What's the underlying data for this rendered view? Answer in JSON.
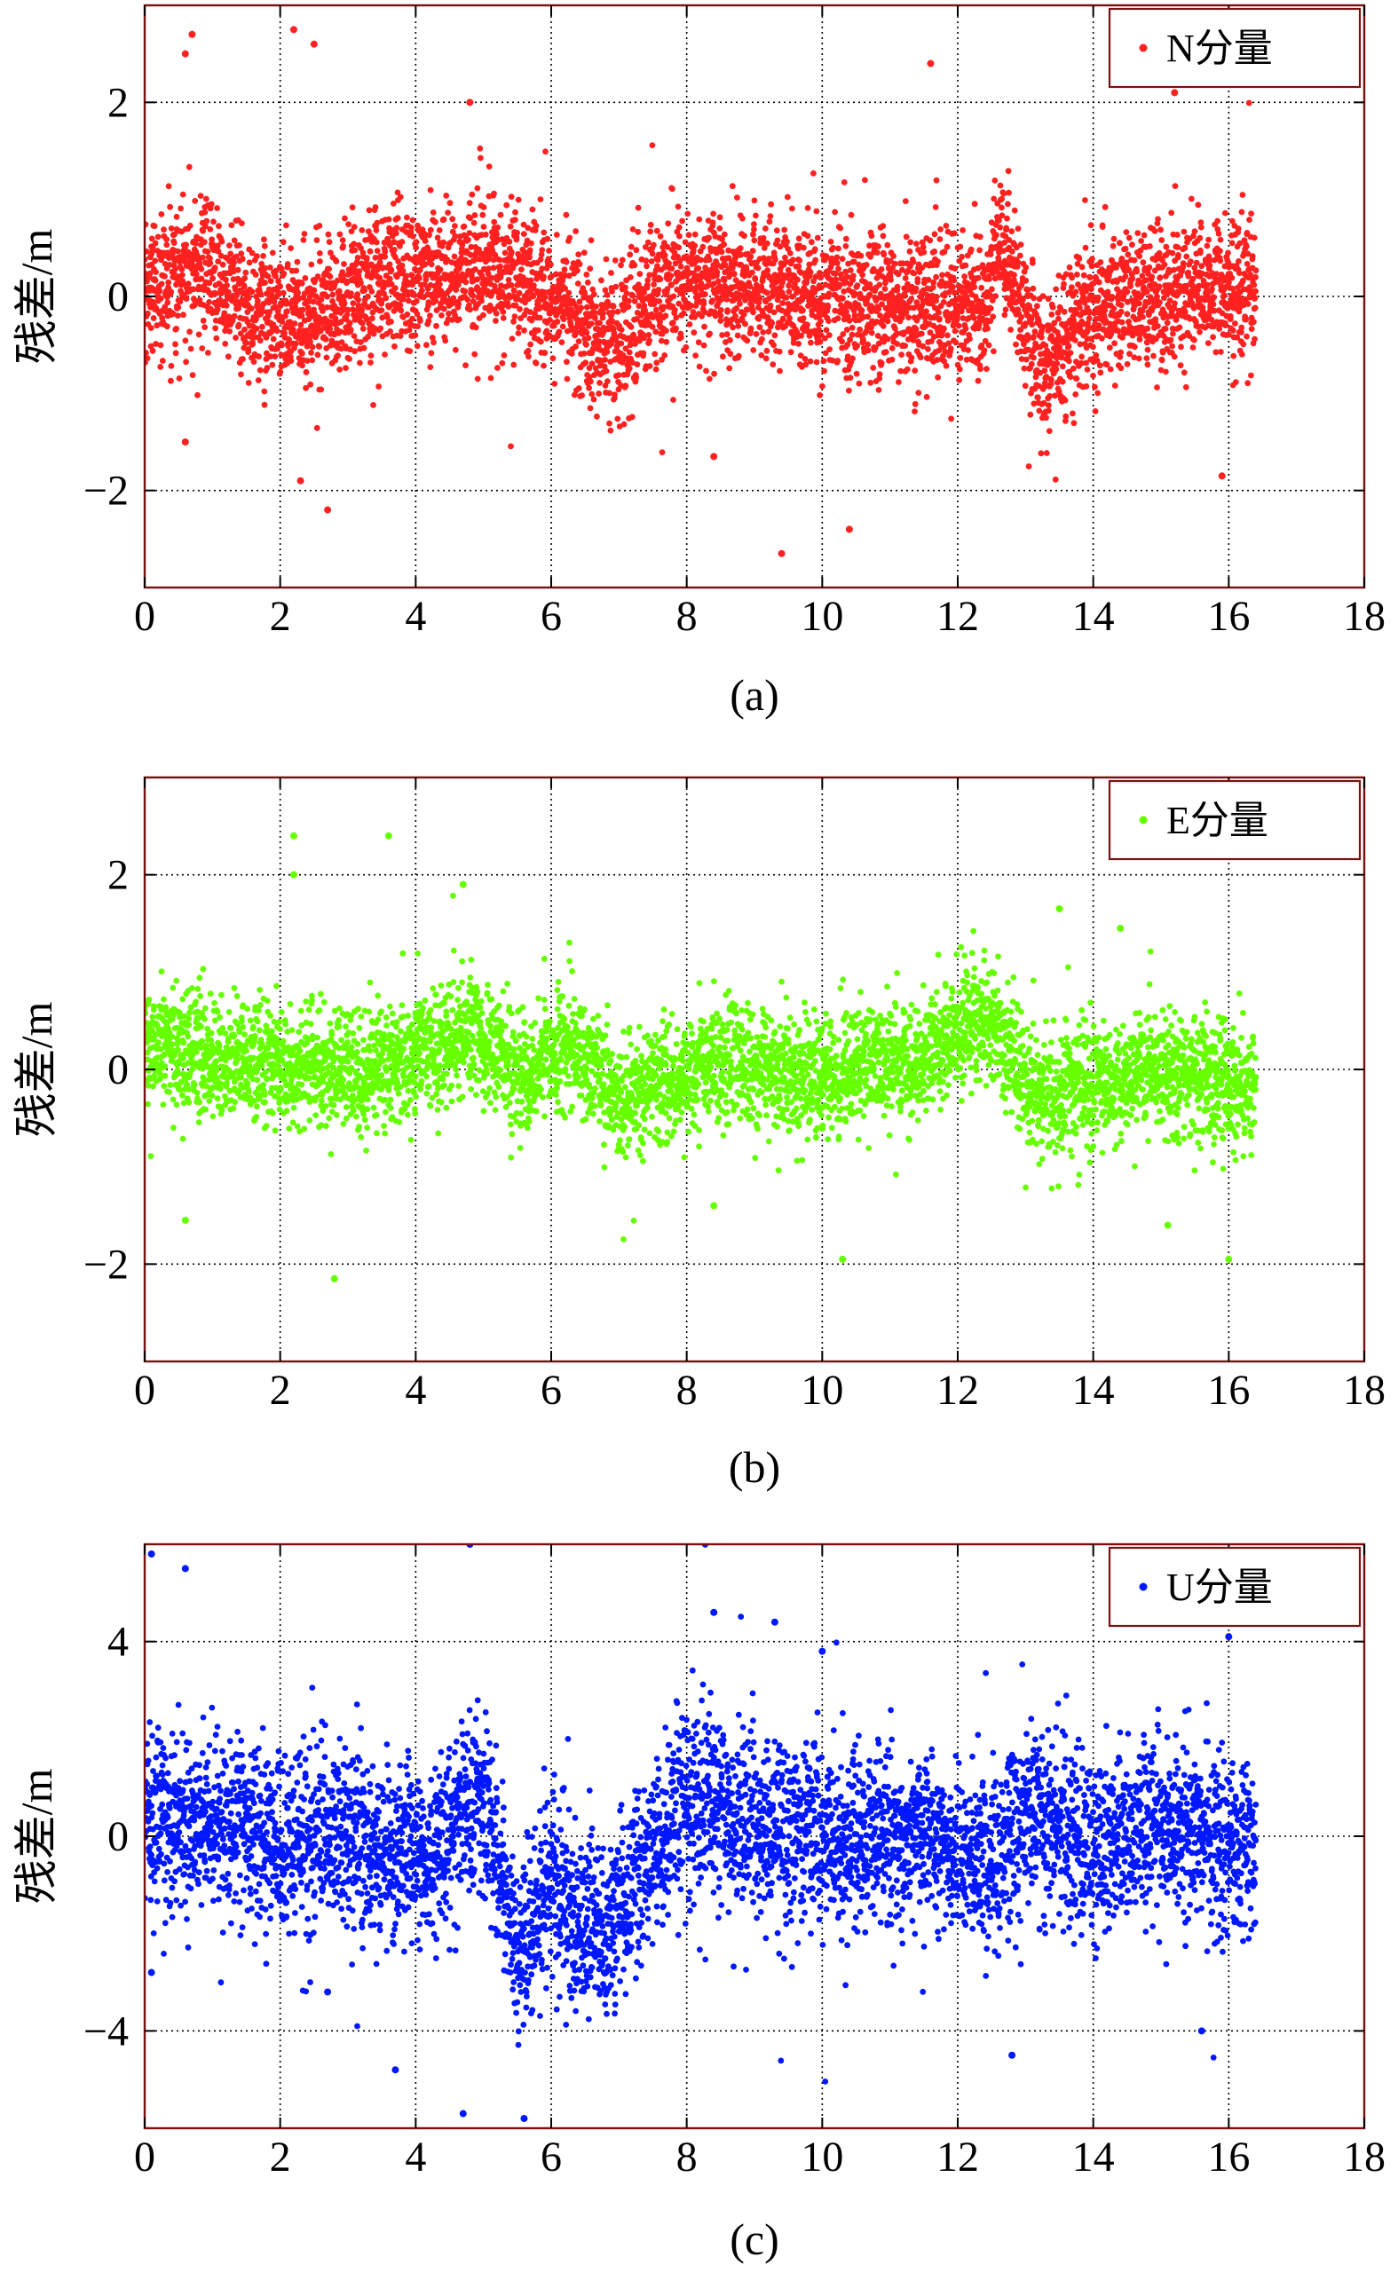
{
  "chart_data": [
    {
      "type": "scatter",
      "panel": "a",
      "caption": "(a)",
      "ylabel": "残差/m",
      "xlabel": "",
      "xlim": [
        0,
        18
      ],
      "ylim": [
        -3,
        3
      ],
      "xticks": [
        0,
        2,
        4,
        6,
        8,
        10,
        12,
        14,
        16,
        18
      ],
      "yticks": [
        -2,
        0,
        2
      ],
      "ytick_labels": [
        "−2",
        "0",
        "2"
      ],
      "grid": true,
      "legend_position": "top-right",
      "series": [
        {
          "name": "N分量",
          "color": "#ff2020",
          "x_range": [
            0,
            16.4
          ],
          "trend_segments": [
            [
              0,
              0.0
            ],
            [
              0.8,
              0.3
            ],
            [
              1.5,
              -0.1
            ],
            [
              2.5,
              -0.2
            ],
            [
              3.5,
              0.1
            ],
            [
              4.0,
              0.2
            ],
            [
              5.0,
              0.3
            ],
            [
              5.8,
              0.1
            ],
            [
              6.3,
              -0.2
            ],
            [
              7.0,
              -0.5
            ],
            [
              7.4,
              -0.1
            ],
            [
              8.0,
              0.2
            ],
            [
              9.5,
              0.0
            ],
            [
              11.0,
              -0.1
            ],
            [
              12.4,
              -0.1
            ],
            [
              12.6,
              0.6
            ],
            [
              13.3,
              -0.8
            ],
            [
              13.8,
              -0.2
            ],
            [
              15.0,
              0.0
            ],
            [
              16.4,
              0.1
            ]
          ],
          "spread": 0.35,
          "outliers": [
            [
              0.6,
              2.5
            ],
            [
              0.7,
              2.7
            ],
            [
              2.2,
              2.75
            ],
            [
              2.5,
              2.6
            ],
            [
              4.8,
              2.0
            ],
            [
              11.6,
              2.4
            ],
            [
              15.2,
              2.1
            ],
            [
              9.4,
              -2.65
            ],
            [
              10.4,
              -2.4
            ],
            [
              2.7,
              -2.2
            ],
            [
              8.4,
              -1.65
            ],
            [
              2.3,
              -1.9
            ],
            [
              15.9,
              -1.85
            ],
            [
              0.6,
              -1.5
            ]
          ]
        }
      ]
    },
    {
      "type": "scatter",
      "panel": "b",
      "caption": "(b)",
      "ylabel": "残差/m",
      "xlabel": "",
      "xlim": [
        0,
        18
      ],
      "ylim": [
        -3,
        3
      ],
      "xticks": [
        0,
        2,
        4,
        6,
        8,
        10,
        12,
        14,
        16,
        18
      ],
      "yticks": [
        -2,
        0,
        2
      ],
      "ytick_labels": [
        "−2",
        "0",
        "2"
      ],
      "grid": true,
      "legend_position": "top-right",
      "series": [
        {
          "name": "E分量",
          "color": "#66ff00",
          "x_range": [
            0,
            16.4
          ],
          "trend_segments": [
            [
              0,
              0.3
            ],
            [
              1.0,
              0.1
            ],
            [
              2.0,
              0.0
            ],
            [
              3.0,
              0.0
            ],
            [
              4.0,
              0.1
            ],
            [
              4.8,
              0.4
            ],
            [
              5.6,
              -0.1
            ],
            [
              6.2,
              0.3
            ],
            [
              7.0,
              -0.3
            ],
            [
              7.5,
              -0.2
            ],
            [
              8.5,
              0.1
            ],
            [
              10.0,
              -0.1
            ],
            [
              11.5,
              0.1
            ],
            [
              12.5,
              0.5
            ],
            [
              13.2,
              -0.3
            ],
            [
              14.0,
              -0.1
            ],
            [
              15.0,
              0.0
            ],
            [
              16.4,
              -0.2
            ]
          ],
          "spread": 0.3,
          "outliers": [
            [
              2.2,
              2.4
            ],
            [
              3.6,
              2.4
            ],
            [
              2.2,
              2.0
            ],
            [
              4.7,
              1.9
            ],
            [
              13.5,
              1.65
            ],
            [
              14.4,
              1.45
            ],
            [
              2.8,
              -2.15
            ],
            [
              10.3,
              -1.95
            ],
            [
              15.1,
              -1.6
            ],
            [
              0.6,
              -1.55
            ],
            [
              8.4,
              -1.4
            ],
            [
              16.0,
              -1.95
            ]
          ]
        }
      ]
    },
    {
      "type": "scatter",
      "panel": "c",
      "caption": "(c)",
      "ylabel": "残差/m",
      "xlabel": "",
      "xlim": [
        0,
        18
      ],
      "ylim": [
        -6,
        6
      ],
      "xticks": [
        0,
        2,
        4,
        6,
        8,
        10,
        12,
        14,
        16,
        18
      ],
      "yticks": [
        -4,
        0,
        4
      ],
      "ytick_labels": [
        "−4",
        "0",
        "4"
      ],
      "grid": true,
      "legend_position": "top-right",
      "series": [
        {
          "name": "U分量",
          "color": "#0018ff",
          "x_range": [
            0,
            16.4
          ],
          "trend_segments": [
            [
              0,
              0.5
            ],
            [
              1.0,
              0.3
            ],
            [
              2.0,
              -0.1
            ],
            [
              3.0,
              0.0
            ],
            [
              3.8,
              -0.5
            ],
            [
              4.5,
              0.0
            ],
            [
              5.0,
              1.0
            ],
            [
              5.5,
              -2.5
            ],
            [
              6.0,
              -1.0
            ],
            [
              6.8,
              -2.0
            ],
            [
              7.4,
              -0.5
            ],
            [
              8.0,
              0.8
            ],
            [
              9.0,
              0.3
            ],
            [
              10.0,
              0.0
            ],
            [
              11.5,
              0.0
            ],
            [
              12.5,
              -0.5
            ],
            [
              13.2,
              0.4
            ],
            [
              14.0,
              -0.3
            ],
            [
              15.0,
              0.3
            ],
            [
              16.4,
              -0.3
            ]
          ],
          "spread": 0.9,
          "outliers": [
            [
              4.8,
              6.0
            ],
            [
              0.6,
              5.5
            ],
            [
              0.1,
              5.8
            ],
            [
              8.4,
              4.6
            ],
            [
              9.3,
              4.4
            ],
            [
              16.0,
              4.1
            ],
            [
              10.0,
              3.8
            ],
            [
              5.6,
              -5.8
            ],
            [
              4.7,
              -5.7
            ],
            [
              12.8,
              -4.5
            ],
            [
              15.6,
              -4.0
            ],
            [
              3.7,
              -4.8
            ],
            [
              2.7,
              -3.2
            ],
            [
              0.1,
              -2.8
            ]
          ]
        }
      ]
    }
  ]
}
